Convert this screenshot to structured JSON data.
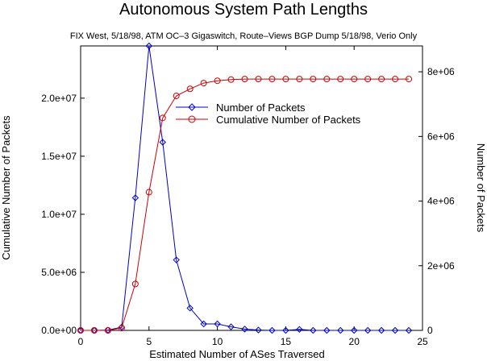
{
  "chart_data": {
    "type": "line",
    "title": "Autonomous System Path Lengths",
    "subtitle": "FIX West, 5/18/98, ATM OC–3 Gigaswitch, Route–Views BGP Dump 5/18/98, Verio Only",
    "xlabel": "Estimated Number of ASes Traversed",
    "ylabel_left": "Cumulative Number of Packets",
    "ylabel_right": "Number of Packets",
    "xlim": [
      0,
      25
    ],
    "ylim_left": [
      0,
      24500000
    ],
    "ylim_right": [
      0,
      8800000
    ],
    "x_ticks": [
      0,
      5,
      10,
      15,
      20,
      25
    ],
    "x_tick_labels": [
      "0",
      "5",
      "10",
      "15",
      "20",
      "25"
    ],
    "y_left_ticks": [
      0,
      5000000,
      10000000,
      15000000,
      20000000
    ],
    "y_left_tick_labels": [
      "0.0e+00",
      "5.0e+06",
      "1.0e+07",
      "1.5e+07",
      "2.0e+07"
    ],
    "y_right_ticks": [
      0,
      2000000,
      4000000,
      6000000,
      8000000
    ],
    "y_right_tick_labels": [
      "0",
      "2e+06",
      "4e+06",
      "6e+06",
      "8e+06"
    ],
    "grid": false,
    "legend_position": "upper-middle",
    "series": [
      {
        "name": "Number of Packets",
        "axis": "right",
        "color": "#0000cc",
        "marker": "diamond",
        "x": [
          0,
          1,
          2,
          3,
          4,
          5,
          6,
          7,
          8,
          9,
          10,
          11,
          12,
          13,
          14,
          15,
          16,
          17,
          18,
          19,
          20,
          21,
          22,
          23,
          24
        ],
        "values": [
          0,
          0,
          10000,
          100000,
          4100000,
          8800000,
          5820000,
          2180000,
          690000,
          200000,
          200000,
          110000,
          40000,
          10000,
          0,
          0,
          30000,
          0,
          0,
          0,
          0,
          0,
          0,
          0,
          0
        ]
      },
      {
        "name": "Cumulative Number of Packets",
        "axis": "left",
        "color": "#cc0000",
        "marker": "circle",
        "x": [
          0,
          1,
          2,
          3,
          4,
          5,
          6,
          7,
          8,
          9,
          10,
          11,
          12,
          13,
          14,
          15,
          16,
          17,
          18,
          19,
          20,
          21,
          22,
          23,
          24
        ],
        "values": [
          0,
          0,
          0,
          200000,
          4000000,
          11900000,
          18300000,
          20200000,
          20800000,
          21300000,
          21500000,
          21600000,
          21650000,
          21650000,
          21650000,
          21650000,
          21650000,
          21650000,
          21650000,
          21650000,
          21650000,
          21650000,
          21650000,
          21650000,
          21650000
        ]
      }
    ]
  }
}
